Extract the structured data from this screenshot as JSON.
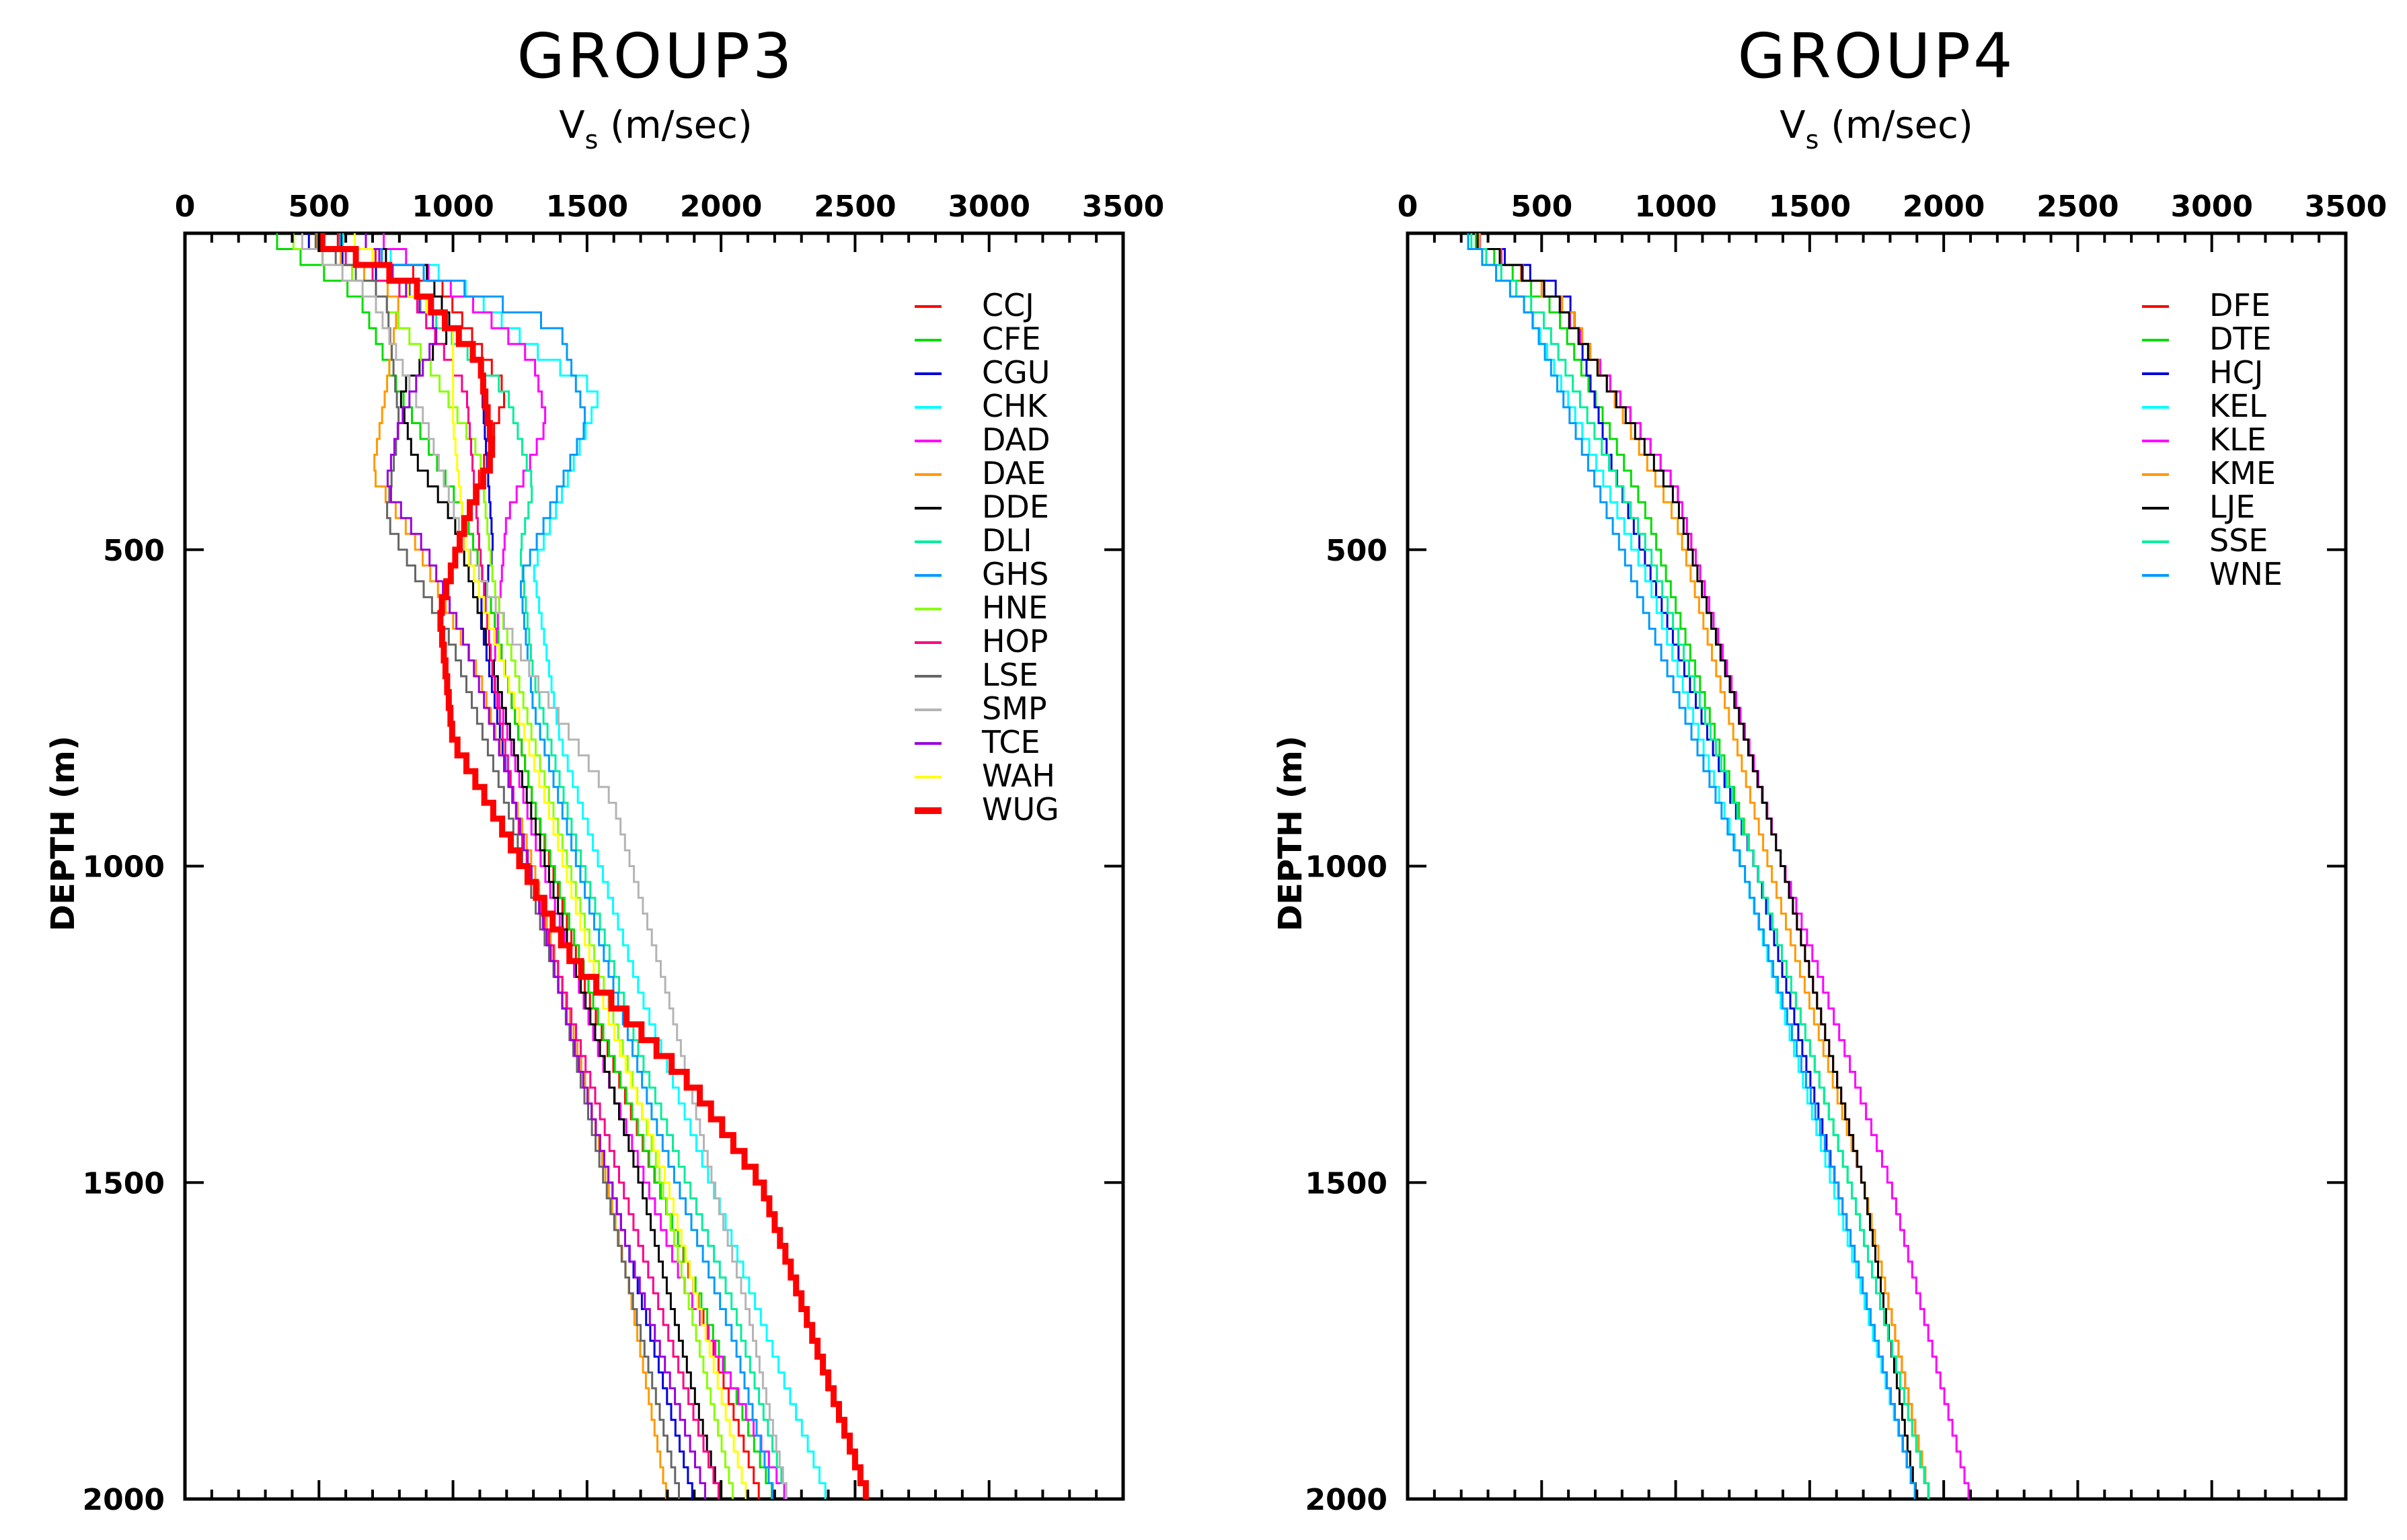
{
  "chart_data": [
    {
      "type": "line",
      "title": "GROUP3",
      "xlabel": "V",
      "xlabel_sub": "s",
      "xlabel_unit": " (m/sec)",
      "ylabel": "DEPTH (m)",
      "xlim": [
        0,
        3500
      ],
      "ylim": [
        0,
        2000
      ],
      "y_inverted": true,
      "grid": false,
      "legend_position": "top-right",
      "xticks": [
        0,
        500,
        1000,
        1500,
        2000,
        2500,
        3000,
        3500
      ],
      "yticks": [
        500,
        1000,
        1500,
        2000
      ],
      "series": [
        {
          "name": "CCJ",
          "color": "#ff0000",
          "width": 3,
          "points": [
            [
              500,
              0
            ],
            [
              950,
              80
            ],
            [
              1200,
              250
            ],
            [
              1050,
              450
            ],
            [
              1150,
              600
            ],
            [
              1300,
              900
            ],
            [
              1500,
              1200
            ],
            [
              1850,
              1600
            ],
            [
              2150,
              2000
            ]
          ]
        },
        {
          "name": "CFE",
          "color": "#00dd00",
          "width": 3,
          "points": [
            [
              300,
              0
            ],
            [
              650,
              100
            ],
            [
              800,
              250
            ],
            [
              1050,
              450
            ],
            [
              1150,
              600
            ],
            [
              1300,
              900
            ],
            [
              1550,
              1250
            ],
            [
              1850,
              1600
            ],
            [
              2200,
              2000
            ]
          ]
        },
        {
          "name": "CGU",
          "color": "#0000dd",
          "width": 3,
          "points": [
            [
              400,
              0
            ],
            [
              900,
              100
            ],
            [
              1100,
              200
            ],
            [
              1150,
              500
            ],
            [
              1100,
              600
            ],
            [
              1200,
              850
            ],
            [
              1400,
              1200
            ],
            [
              1650,
              1600
            ],
            [
              1900,
              2000
            ]
          ]
        },
        {
          "name": "CHK",
          "color": "#00ffff",
          "width": 3,
          "points": [
            [
              500,
              0
            ],
            [
              1000,
              70
            ],
            [
              1350,
              200
            ],
            [
              1550,
              250
            ],
            [
              1400,
              420
            ],
            [
              1300,
              530
            ],
            [
              1400,
              800
            ],
            [
              1700,
              1200
            ],
            [
              2050,
              1600
            ],
            [
              2400,
              2000
            ]
          ]
        },
        {
          "name": "DAD",
          "color": "#ff00ff",
          "width": 3,
          "points": [
            [
              700,
              0
            ],
            [
              1100,
              120
            ],
            [
              1300,
              200
            ],
            [
              1350,
              300
            ],
            [
              1200,
              450
            ],
            [
              1150,
              700
            ],
            [
              1300,
              950
            ],
            [
              1550,
              1300
            ],
            [
              1850,
              1650
            ],
            [
              2250,
              2000
            ]
          ]
        },
        {
          "name": "DAE",
          "color": "#ff9900",
          "width": 3,
          "points": [
            [
              450,
              0
            ],
            [
              800,
              100
            ],
            [
              750,
              250
            ],
            [
              700,
              380
            ],
            [
              850,
              480
            ],
            [
              1100,
              700
            ],
            [
              1300,
              1000
            ],
            [
              1500,
              1350
            ],
            [
              1650,
              1650
            ],
            [
              1800,
              2000
            ]
          ]
        },
        {
          "name": "DDE",
          "color": "#000000",
          "width": 3,
          "points": [
            [
              500,
              0
            ],
            [
              900,
              60
            ],
            [
              1000,
              150
            ],
            [
              800,
              250
            ],
            [
              850,
              350
            ],
            [
              1000,
              450
            ],
            [
              1100,
              600
            ],
            [
              1250,
              850
            ],
            [
              1450,
              1150
            ],
            [
              1700,
              1500
            ],
            [
              2000,
              2000
            ]
          ]
        },
        {
          "name": "DLI",
          "color": "#00ee99",
          "width": 3,
          "points": [
            [
              450,
              0
            ],
            [
              850,
              100
            ],
            [
              1200,
              250
            ],
            [
              1300,
              400
            ],
            [
              1250,
              500
            ],
            [
              1300,
              700
            ],
            [
              1450,
              950
            ],
            [
              1700,
              1300
            ],
            [
              2050,
              1700
            ],
            [
              2250,
              2000
            ]
          ]
        },
        {
          "name": "GHS",
          "color": "#0099ff",
          "width": 3,
          "points": [
            [
              500,
              0
            ],
            [
              1000,
              80
            ],
            [
              1400,
              150
            ],
            [
              1500,
              300
            ],
            [
              1400,
              400
            ],
            [
              1250,
              550
            ],
            [
              1300,
              750
            ],
            [
              1500,
              1050
            ],
            [
              1750,
              1400
            ],
            [
              2050,
              1750
            ],
            [
              2200,
              2000
            ]
          ]
        },
        {
          "name": "HNE",
          "color": "#88ff00",
          "width": 3,
          "points": [
            [
              350,
              0
            ],
            [
              700,
              80
            ],
            [
              900,
              200
            ],
            [
              1100,
              350
            ],
            [
              1150,
              550
            ],
            [
              1300,
              800
            ],
            [
              1500,
              1100
            ],
            [
              1750,
              1450
            ],
            [
              2050,
              2000
            ]
          ]
        },
        {
          "name": "HOP",
          "color": "#ff0088",
          "width": 3,
          "points": [
            [
              450,
              0
            ],
            [
              850,
              100
            ],
            [
              1050,
              250
            ],
            [
              1100,
              500
            ],
            [
              1150,
              700
            ],
            [
              1250,
              950
            ],
            [
              1450,
              1250
            ],
            [
              1700,
              1600
            ],
            [
              2000,
              2000
            ]
          ]
        },
        {
          "name": "LSE",
          "color": "#666666",
          "width": 3,
          "points": [
            [
              450,
              0
            ],
            [
              750,
              100
            ],
            [
              800,
              300
            ],
            [
              750,
              450
            ],
            [
              1000,
              650
            ],
            [
              1200,
              900
            ],
            [
              1400,
              1200
            ],
            [
              1650,
              1650
            ],
            [
              1850,
              2000
            ]
          ]
        },
        {
          "name": "SMP",
          "color": "#b4b4b4",
          "width": 3,
          "points": [
            [
              400,
              0
            ],
            [
              700,
              100
            ],
            [
              900,
              300
            ],
            [
              1050,
              500
            ],
            [
              1300,
              700
            ],
            [
              1600,
              900
            ],
            [
              1800,
              1200
            ],
            [
              2000,
              1550
            ],
            [
              2100,
              1700
            ],
            [
              2250,
              2000
            ]
          ]
        },
        {
          "name": "TCE",
          "color": "#9900dd",
          "width": 3,
          "points": [
            [
              650,
              0
            ],
            [
              950,
              150
            ],
            [
              800,
              300
            ],
            [
              750,
              400
            ],
            [
              900,
              500
            ],
            [
              1050,
              650
            ],
            [
              1200,
              850
            ],
            [
              1400,
              1200
            ],
            [
              1650,
              1600
            ],
            [
              1950,
              2000
            ]
          ]
        },
        {
          "name": "WAH",
          "color": "#ffff00",
          "width": 3,
          "points": [
            [
              600,
              0
            ],
            [
              1000,
              150
            ],
            [
              1000,
              300
            ],
            [
              1050,
              500
            ],
            [
              1200,
              700
            ],
            [
              1350,
              900
            ],
            [
              1550,
              1200
            ],
            [
              1800,
              1500
            ],
            [
              2100,
              2000
            ]
          ]
        },
        {
          "name": "WUG",
          "color": "#ff0000",
          "width": 9,
          "points": [
            [
              450,
              0
            ],
            [
              850,
              80
            ],
            [
              1100,
              200
            ],
            [
              1150,
              350
            ],
            [
              1050,
              450
            ],
            [
              950,
              600
            ],
            [
              1000,
              800
            ],
            [
              1200,
              950
            ],
            [
              1450,
              1150
            ],
            [
              1900,
              1350
            ],
            [
              2150,
              1500
            ],
            [
              2350,
              1750
            ],
            [
              2550,
              2000
            ]
          ]
        }
      ]
    },
    {
      "type": "line",
      "title": "GROUP4",
      "xlabel": "V",
      "xlabel_sub": "s",
      "xlabel_unit": " (m/sec)",
      "ylabel": "DEPTH (m)",
      "xlim": [
        0,
        3500
      ],
      "ylim": [
        0,
        2000
      ],
      "y_inverted": true,
      "grid": false,
      "legend_position": "top-right",
      "xticks": [
        0,
        500,
        1000,
        1500,
        2000,
        2500,
        3000,
        3500
      ],
      "yticks": [
        500,
        1000,
        1500,
        2000
      ],
      "series": [
        {
          "name": "DFE",
          "color": "#ff0000",
          "width": 3,
          "points": [
            [
              230,
              0
            ],
            [
              550,
              100
            ],
            [
              1000,
              400
            ],
            [
              1400,
              1000
            ],
            [
              1700,
              1500
            ],
            [
              1950,
              2000
            ]
          ]
        },
        {
          "name": "DTE",
          "color": "#00dd00",
          "width": 3,
          "points": [
            [
              220,
              0
            ],
            [
              550,
              120
            ],
            [
              900,
              450
            ],
            [
              1300,
              1000
            ],
            [
              1650,
              1500
            ],
            [
              1950,
              2000
            ]
          ]
        },
        {
          "name": "HCJ",
          "color": "#0000dd",
          "width": 3,
          "points": [
            [
              220,
              0
            ],
            [
              600,
              100
            ],
            [
              750,
              350
            ],
            [
              1000,
              650
            ],
            [
              1300,
              1000
            ],
            [
              1600,
              1500
            ],
            [
              1900,
              2000
            ]
          ]
        },
        {
          "name": "KEL",
          "color": "#00ffff",
          "width": 3,
          "points": [
            [
              200,
              0
            ],
            [
              450,
              120
            ],
            [
              900,
              550
            ],
            [
              1250,
              1000
            ],
            [
              1650,
              1600
            ],
            [
              1900,
              2000
            ]
          ]
        },
        {
          "name": "KLE",
          "color": "#ff00ff",
          "width": 3,
          "points": [
            [
              230,
              0
            ],
            [
              550,
              100
            ],
            [
              1000,
              400
            ],
            [
              1400,
              1000
            ],
            [
              1800,
              1500
            ],
            [
              2100,
              2000
            ]
          ]
        },
        {
          "name": "KME",
          "color": "#ff9900",
          "width": 3,
          "points": [
            [
              230,
              0
            ],
            [
              600,
              120
            ],
            [
              1000,
              450
            ],
            [
              1350,
              1000
            ],
            [
              1700,
              1500
            ],
            [
              1950,
              2000
            ]
          ]
        },
        {
          "name": "LJE",
          "color": "#000000",
          "width": 3,
          "points": [
            [
              220,
              0
            ],
            [
              550,
              100
            ],
            [
              1000,
              420
            ],
            [
              1400,
              1000
            ],
            [
              1700,
              1500
            ],
            [
              1900,
              2000
            ]
          ]
        },
        {
          "name": "SSE",
          "color": "#00ee99",
          "width": 3,
          "points": [
            [
              210,
              0
            ],
            [
              500,
              130
            ],
            [
              900,
              500
            ],
            [
              1300,
              1000
            ],
            [
              1650,
              1500
            ],
            [
              1950,
              2000
            ]
          ]
        },
        {
          "name": "WNE",
          "color": "#0099ff",
          "width": 3,
          "points": [
            [
              200,
              0
            ],
            [
              450,
              120
            ],
            [
              800,
              500
            ],
            [
              1250,
              1000
            ],
            [
              1600,
              1500
            ],
            [
              1900,
              2000
            ]
          ]
        }
      ]
    }
  ]
}
